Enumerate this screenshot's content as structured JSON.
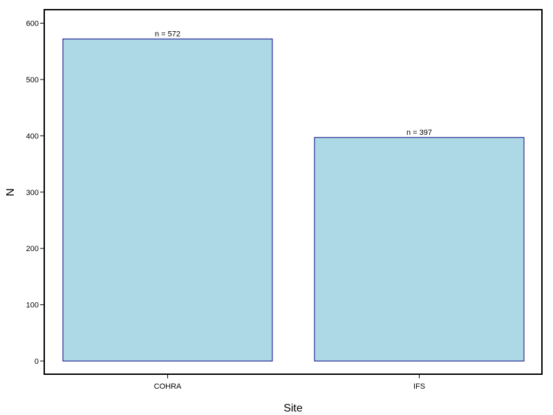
{
  "chart_data": {
    "type": "bar",
    "categories": [
      "COHRA",
      "IFS"
    ],
    "values": [
      572,
      397
    ],
    "data_labels": [
      "n =  572",
      "n =  397"
    ],
    "xlabel": "Site",
    "ylabel": "N",
    "ylim": [
      0,
      600
    ],
    "yticks": [
      0,
      100,
      200,
      300,
      400,
      500,
      600
    ],
    "grid": false,
    "legend": "none",
    "colors": {
      "bar_fill": "#ADD8E6",
      "bar_stroke": "#000080",
      "frame": "#000000"
    }
  }
}
